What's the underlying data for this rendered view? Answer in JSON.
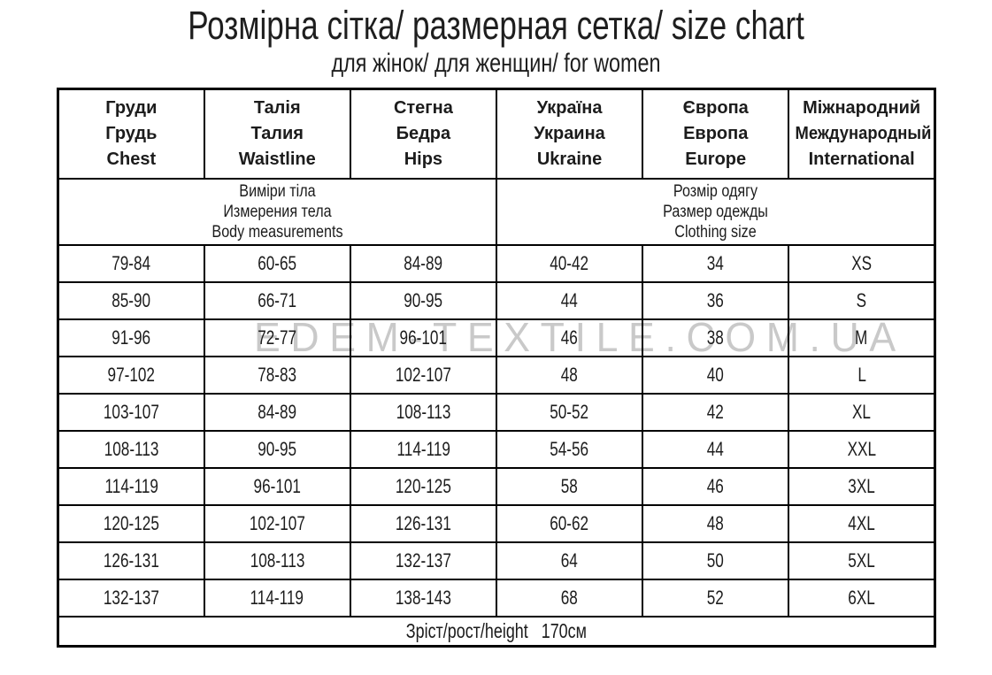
{
  "page": {
    "title": "Розмірна сітка/ размерная сетка/ size chart",
    "subtitle": "для жінок/ для женщин/ for women"
  },
  "watermark": "EDEM-TEXTILE.COM.UA",
  "colors": {
    "border": "#000000",
    "text": "#1c1c1c",
    "watermark": "#c9c9c9",
    "background": "#ffffff"
  },
  "chart_data": {
    "type": "table",
    "title": "Розмірна сітка/ размерная сетка/ size chart",
    "subtitle": "для жінок/ для женщин/ for women",
    "columns": [
      {
        "uk": "Груди",
        "ru": "Грудь",
        "en": "Chest"
      },
      {
        "uk": "Талія",
        "ru": "Талия",
        "en": "Waistline"
      },
      {
        "uk": "Стегна",
        "ru": "Бедра",
        "en": "Hips"
      },
      {
        "uk": "Україна",
        "ru": "Украина",
        "en": "Ukraine"
      },
      {
        "uk": "Європа",
        "ru": "Европа",
        "en": "Europe"
      },
      {
        "uk": "Міжнародний",
        "ru": "Международный",
        "en": "International"
      }
    ],
    "column_groups": [
      {
        "uk": "Виміри тіла",
        "ru": "Измерения тела",
        "en": "Body measurements",
        "span": 3
      },
      {
        "uk": "Розмір одягу",
        "ru": "Размер одежды",
        "en": "Clothing size",
        "span": 3
      }
    ],
    "rows": [
      [
        "79-84",
        "60-65",
        "84-89",
        "40-42",
        "34",
        "XS"
      ],
      [
        "85-90",
        "66-71",
        "90-95",
        "44",
        "36",
        "S"
      ],
      [
        "91-96",
        "72-77",
        "96-101",
        "46",
        "38",
        "M"
      ],
      [
        "97-102",
        "78-83",
        "102-107",
        "48",
        "40",
        "L"
      ],
      [
        "103-107",
        "84-89",
        "108-113",
        "50-52",
        "42",
        "XL"
      ],
      [
        "108-113",
        "90-95",
        "114-119",
        "54-56",
        "44",
        "XXL"
      ],
      [
        "114-119",
        "96-101",
        "120-125",
        "58",
        "46",
        "3XL"
      ],
      [
        "120-125",
        "102-107",
        "126-131",
        "60-62",
        "48",
        "4XL"
      ],
      [
        "126-131",
        "108-113",
        "132-137",
        "64",
        "50",
        "5XL"
      ],
      [
        "132-137",
        "114-119",
        "138-143",
        "68",
        "52",
        "6XL"
      ]
    ],
    "footer": "Зріст/рост/height   170см"
  }
}
